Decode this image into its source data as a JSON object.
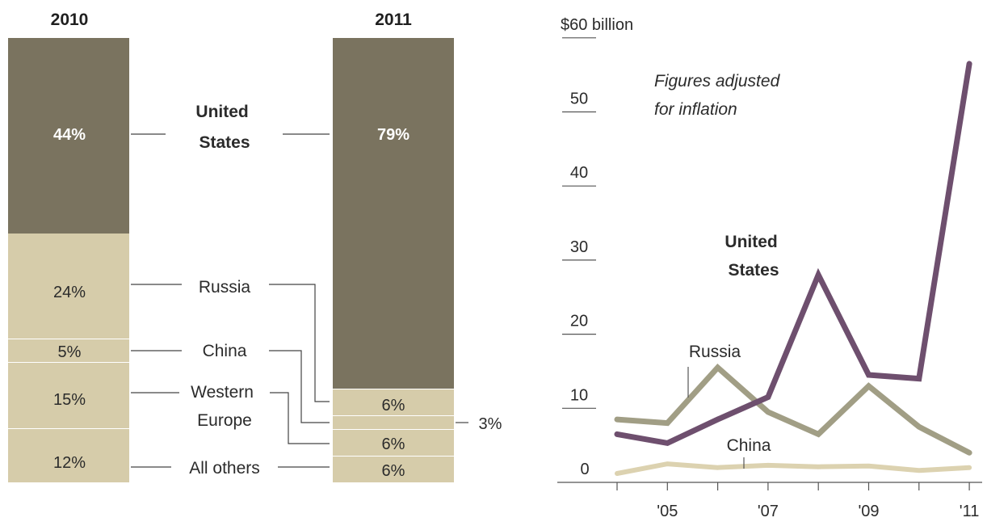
{
  "colors": {
    "us": "#7a735f",
    "others": "#d6ccaa",
    "us_line": "#6e4f6e",
    "russia_line": "#a19e85",
    "china_line": "#dcd2b0"
  },
  "chart_data": [
    {
      "type": "bar",
      "stacked": true,
      "categories": [
        "2010",
        "2011"
      ],
      "series": [
        {
          "name": "United States",
          "label": "United\nStates",
          "values": [
            44,
            79
          ],
          "labels": [
            "44%",
            "79%"
          ]
        },
        {
          "name": "Russia",
          "values": [
            24,
            6
          ],
          "labels": [
            "24%",
            "6%"
          ]
        },
        {
          "name": "China",
          "values": [
            5,
            3
          ],
          "labels": [
            "5%",
            "3%"
          ]
        },
        {
          "name": "Western Europe",
          "label": "Western\nEurope",
          "values": [
            15,
            6
          ],
          "labels": [
            "15%",
            "6%"
          ]
        },
        {
          "name": "All others",
          "values": [
            12,
            6
          ],
          "labels": [
            "12%",
            "6%"
          ]
        }
      ]
    },
    {
      "type": "line",
      "x": [
        2004,
        2005,
        2006,
        2007,
        2008,
        2009,
        2010,
        2011
      ],
      "xticks": [
        "'05",
        "'07",
        "'09",
        "'11"
      ],
      "xtick_values": [
        2005,
        2007,
        2009,
        2011
      ],
      "yticks": [
        "0",
        "10",
        "20",
        "30",
        "40",
        "50",
        "$60 billion"
      ],
      "ytick_values": [
        0,
        10,
        20,
        30,
        40,
        50,
        60
      ],
      "ylim": [
        0,
        60
      ],
      "annotation": "Figures adjusted\nfor inflation",
      "series": [
        {
          "name": "United States",
          "label": "United\nStates",
          "values": [
            6.5,
            5.3,
            8.5,
            11.5,
            28,
            14.5,
            14,
            56.5
          ]
        },
        {
          "name": "Russia",
          "values": [
            8.5,
            8,
            15.5,
            9.5,
            6.5,
            13,
            7.5,
            4
          ]
        },
        {
          "name": "China",
          "values": [
            1.2,
            2.5,
            2,
            2.3,
            2.1,
            2.2,
            1.6,
            2
          ]
        }
      ]
    }
  ]
}
